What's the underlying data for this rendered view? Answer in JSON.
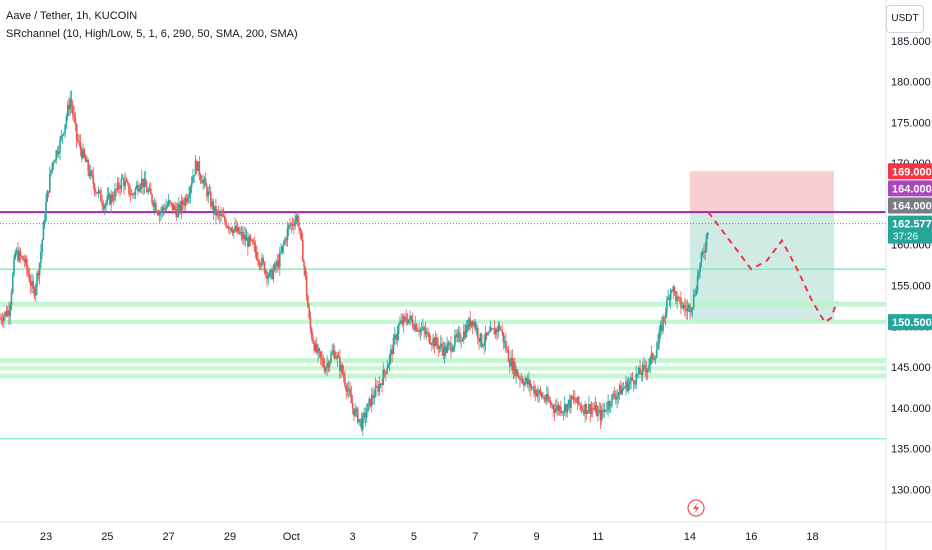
{
  "header": {
    "title": "Aave / Tether, 1h, KUCOIN",
    "indicator": "SRchannel (10, High/Low, 5, 1, 6, 290, 50, SMA, 200, SMA)"
  },
  "currency_button": {
    "label": "USDT"
  },
  "colors": {
    "up": "#26a69a",
    "down": "#ef5350",
    "sr_band": "#b9f6ca",
    "sr_line": "#69f0ae",
    "purple_line": "#9c27b0",
    "loss_zone": "#f7c6c9",
    "profit_zone": "#c8e6df",
    "projection": "#f23645",
    "lightning": "#ef5350"
  },
  "chart_data": {
    "type": "candlestick",
    "symbol": "Aave / Tether",
    "timeframe": "1h",
    "exchange": "KUCOIN",
    "ylim": [
      126,
      190
    ],
    "y_ticks": [
      130,
      135,
      140,
      145,
      150,
      155,
      160,
      165,
      170,
      175,
      180,
      185
    ],
    "y_tick_labels": [
      "130.000",
      "135.000",
      "140.000",
      "145.000",
      "150.000",
      "155.000",
      "160.000",
      "165.000",
      "170.000",
      "175.000",
      "180.000",
      "185.000"
    ],
    "x_ticks": [
      {
        "label": "23",
        "day": 23
      },
      {
        "label": "25",
        "day": 25
      },
      {
        "label": "27",
        "day": 27
      },
      {
        "label": "29",
        "day": 29
      },
      {
        "label": "Oct",
        "day": 31
      },
      {
        "label": "3",
        "day": 33
      },
      {
        "label": "5",
        "day": 35
      },
      {
        "label": "7",
        "day": 37
      },
      {
        "label": "9",
        "day": 39
      },
      {
        "label": "11",
        "day": 41
      },
      {
        "label": "14",
        "day": 44
      },
      {
        "label": "16",
        "day": 46
      },
      {
        "label": "18",
        "day": 48
      }
    ],
    "xlim": [
      21.5,
      50.2
    ],
    "price_path": [
      [
        21.5,
        151.0
      ],
      [
        21.8,
        152.0
      ],
      [
        22.0,
        159.0
      ],
      [
        22.3,
        158.0
      ],
      [
        22.6,
        154.0
      ],
      [
        22.8,
        158.0
      ],
      [
        23.0,
        165.0
      ],
      [
        23.2,
        170.0
      ],
      [
        23.5,
        173.0
      ],
      [
        23.8,
        178.0
      ],
      [
        24.0,
        173.0
      ],
      [
        24.3,
        170.0
      ],
      [
        24.6,
        167.0
      ],
      [
        24.9,
        165.0
      ],
      [
        25.2,
        166.0
      ],
      [
        25.5,
        168.0
      ],
      [
        25.8,
        166.0
      ],
      [
        26.1,
        168.0
      ],
      [
        26.4,
        166.0
      ],
      [
        26.7,
        164.0
      ],
      [
        27.0,
        165.0
      ],
      [
        27.3,
        164.0
      ],
      [
        27.6,
        166.0
      ],
      [
        27.9,
        170.0
      ],
      [
        28.2,
        167.0
      ],
      [
        28.5,
        164.0
      ],
      [
        28.8,
        163.0
      ],
      [
        29.1,
        162.0
      ],
      [
        29.4,
        161.0
      ],
      [
        29.7,
        160.0
      ],
      [
        30.0,
        158.0
      ],
      [
        30.3,
        156.0
      ],
      [
        30.6,
        158.0
      ],
      [
        30.9,
        162.0
      ],
      [
        31.2,
        163.5
      ],
      [
        31.4,
        158.0
      ],
      [
        31.6,
        150.0
      ],
      [
        31.8,
        147.0
      ],
      [
        32.1,
        145.0
      ],
      [
        32.4,
        147.0
      ],
      [
        32.7,
        144.0
      ],
      [
        33.0,
        140.0
      ],
      [
        33.3,
        138.0
      ],
      [
        33.6,
        141.0
      ],
      [
        33.9,
        143.0
      ],
      [
        34.2,
        146.0
      ],
      [
        34.5,
        150.0
      ],
      [
        34.8,
        151.0
      ],
      [
        35.1,
        150.0
      ],
      [
        35.4,
        149.0
      ],
      [
        35.7,
        148.0
      ],
      [
        36.0,
        147.0
      ],
      [
        36.3,
        148.0
      ],
      [
        36.6,
        149.0
      ],
      [
        36.9,
        151.0
      ],
      [
        37.2,
        148.0
      ],
      [
        37.5,
        149.0
      ],
      [
        37.8,
        150.0
      ],
      [
        38.1,
        146.0
      ],
      [
        38.4,
        144.0
      ],
      [
        38.7,
        143.0
      ],
      [
        39.0,
        142.0
      ],
      [
        39.3,
        141.0
      ],
      [
        39.6,
        140.0
      ],
      [
        39.9,
        140.0
      ],
      [
        40.2,
        141.0
      ],
      [
        40.5,
        140.0
      ],
      [
        40.8,
        140.0
      ],
      [
        41.1,
        139.0
      ],
      [
        41.4,
        141.0
      ],
      [
        41.7,
        142.0
      ],
      [
        42.0,
        143.0
      ],
      [
        42.3,
        144.0
      ],
      [
        42.6,
        145.0
      ],
      [
        42.9,
        147.0
      ],
      [
        43.2,
        152.0
      ],
      [
        43.4,
        155.0
      ],
      [
        43.6,
        153.0
      ],
      [
        43.9,
        152.0
      ],
      [
        44.1,
        153.0
      ],
      [
        44.3,
        157.0
      ],
      [
        44.5,
        160.0
      ],
      [
        44.6,
        162.5
      ]
    ],
    "horizontal_levels": [
      {
        "kind": "purple_line",
        "price": 164.0
      },
      {
        "kind": "dotted_price",
        "price": 162.577
      },
      {
        "kind": "sr_line",
        "price": 157.0
      },
      {
        "kind": "sr_band",
        "from": 152.4,
        "to": 153.0
      },
      {
        "kind": "sr_band",
        "from": 150.3,
        "to": 150.8
      },
      {
        "kind": "sr_band",
        "from": 145.5,
        "to": 146.1
      },
      {
        "kind": "sr_band",
        "from": 144.6,
        "to": 145.1
      },
      {
        "kind": "sr_band",
        "from": 143.6,
        "to": 144.2
      },
      {
        "kind": "sr_line",
        "price": 136.2
      }
    ],
    "position": {
      "day_start": 44.0,
      "day_end": 48.7,
      "stop": 169.0,
      "entry": 164.0,
      "target": 150.5
    },
    "projection_path": [
      [
        44.6,
        164.0
      ],
      [
        45.2,
        161.0
      ],
      [
        46.0,
        157.0
      ],
      [
        46.5,
        158.0
      ],
      [
        47.0,
        160.5
      ],
      [
        47.5,
        157.0
      ],
      [
        48.0,
        153.0
      ],
      [
        48.4,
        150.5
      ],
      [
        48.6,
        151.0
      ],
      [
        48.8,
        153.0
      ]
    ],
    "price_badges": [
      {
        "label": "169.000",
        "price": 169.0,
        "color": "#f23645"
      },
      {
        "label": "164.000",
        "price": 166.9,
        "color": "#ab47bc"
      },
      {
        "label": "164.000",
        "price": 164.8,
        "color": "#787b86"
      },
      {
        "label": "162.577",
        "sub": "37:26",
        "price": 162.577,
        "color": "#26a69a"
      },
      {
        "label": "150.500",
        "price": 150.5,
        "color": "#26a69a"
      }
    ]
  }
}
